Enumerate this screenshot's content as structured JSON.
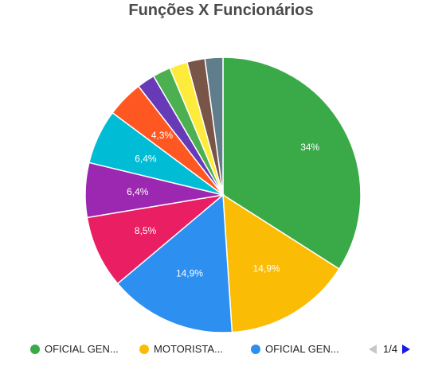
{
  "chart_data": {
    "type": "pie",
    "title": "Funções X Funcionários",
    "slices": [
      {
        "label": "OFICIAL GEN...",
        "value": 34.0,
        "display": "34%",
        "color": "#3aaa49"
      },
      {
        "label": "MOTORISTA...",
        "value": 14.9,
        "display": "14,9%",
        "color": "#fbbc05"
      },
      {
        "label": "OFICIAL GEN...",
        "value": 14.9,
        "display": "14,9%",
        "color": "#2d8ff0"
      },
      {
        "value": 8.5,
        "display": "8,5%",
        "color": "#e91e63"
      },
      {
        "value": 6.4,
        "display": "6,4%",
        "color": "#9c27b0"
      },
      {
        "value": 6.4,
        "display": "6,4%",
        "color": "#00bcd4"
      },
      {
        "value": 4.3,
        "display": "4,3%",
        "color": "#ff5722"
      },
      {
        "value": 2.1,
        "display": "",
        "color": "#673ab7"
      },
      {
        "value": 2.1,
        "display": "",
        "color": "#4caf50"
      },
      {
        "value": 2.1,
        "display": "",
        "color": "#ffeb3b"
      },
      {
        "value": 2.1,
        "display": "",
        "color": "#795548"
      },
      {
        "value": 2.1,
        "display": "",
        "color": "#607d8b"
      }
    ],
    "legend": {
      "placement": "bottom",
      "page": "1/4"
    }
  }
}
